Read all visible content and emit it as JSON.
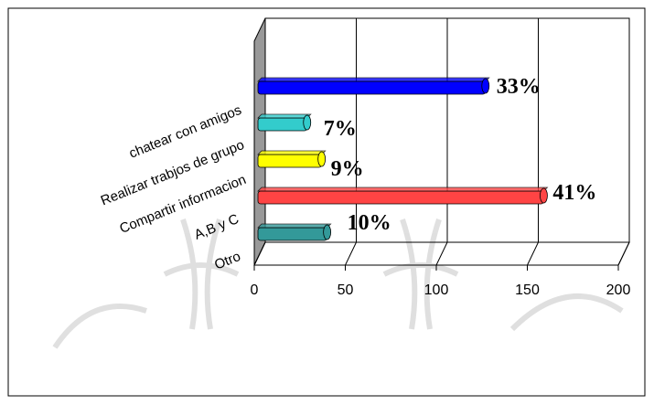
{
  "chart_data": {
    "type": "bar3d_horizontal",
    "categories": [
      "chatear con amigos",
      "Realizar trabjos de grupo",
      "Compartir informacion",
      "A,B y C",
      "Otro"
    ],
    "values": [
      125,
      27,
      35,
      157,
      38
    ],
    "value_labels": [
      "33%",
      "7%",
      "9%",
      "41%",
      "10%"
    ],
    "colors": [
      "#0000ff",
      "#33cccc",
      "#ffff00",
      "#ff4444",
      "#339999"
    ],
    "xlim": [
      0,
      200
    ],
    "xticks": [
      0,
      50,
      100,
      150,
      200
    ],
    "grid": true
  }
}
